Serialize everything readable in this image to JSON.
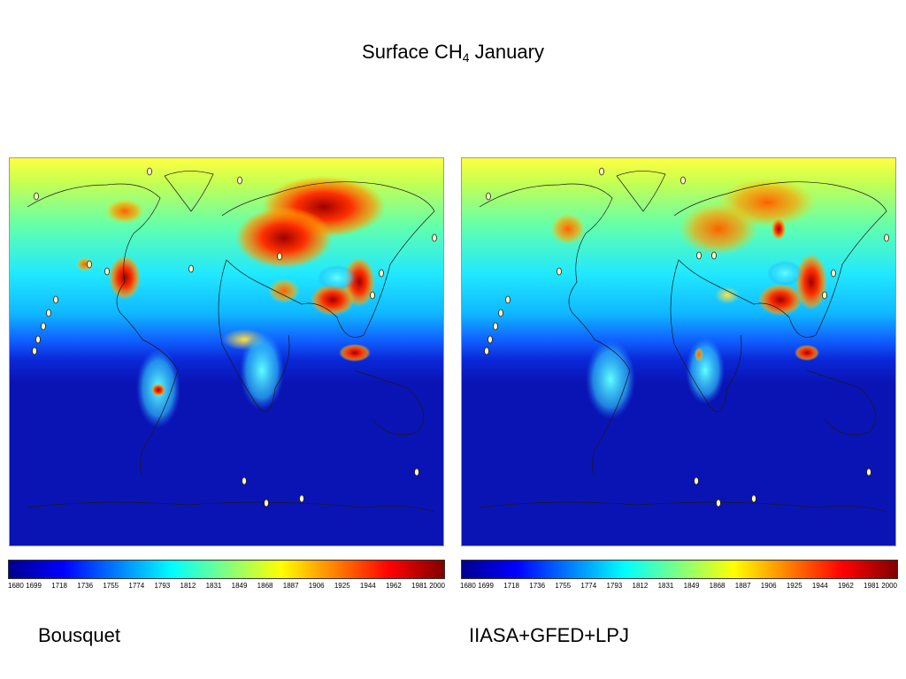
{
  "title": {
    "text": "Surface CH",
    "subscript": "4",
    "suffix": " January"
  },
  "colorbar": {
    "ticks": [
      "1680",
      "1699",
      "1718",
      "1736",
      "1755",
      "1774",
      "1793",
      "1812",
      "1831",
      "1849",
      "1868",
      "1887",
      "1906",
      "1925",
      "1944",
      "1962",
      "1981",
      "2000"
    ],
    "colors": [
      "#00008f",
      "#0000ff",
      "#0080ff",
      "#00ffff",
      "#80ff80",
      "#ffff00",
      "#ff8000",
      "#ff0000",
      "#800000"
    ]
  },
  "panels": [
    {
      "label": "Bousquet"
    },
    {
      "label": "IIASA+GFED+LPJ"
    }
  ]
}
